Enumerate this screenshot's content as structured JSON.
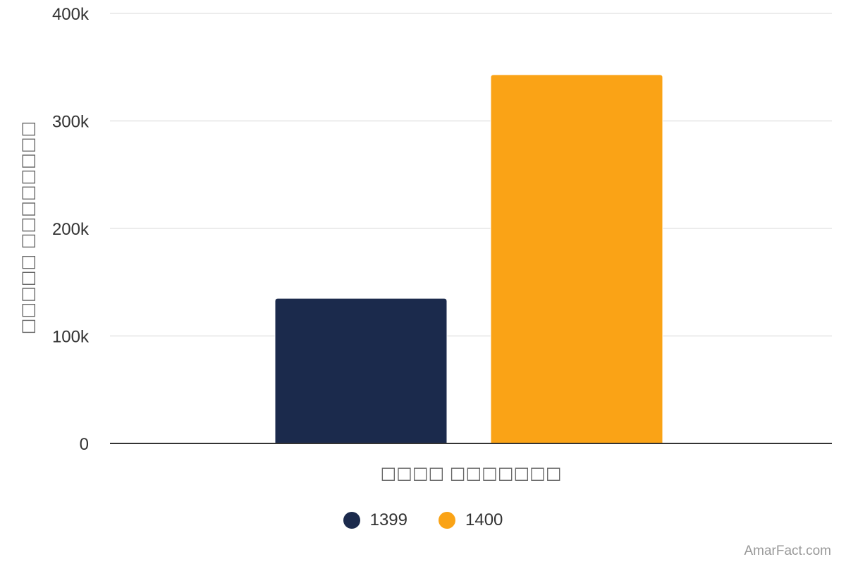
{
  "chart_data": {
    "type": "bar",
    "title": "",
    "xlabel": "□□□□ □□□□□□□",
    "ylabel": "□□□□□ □□□□□□□□",
    "categories": [
      ""
    ],
    "series": [
      {
        "name": "1399",
        "values": [
          135000
        ],
        "color": "#1b2a4c"
      },
      {
        "name": "1400",
        "values": [
          343000
        ],
        "color": "#faa316"
      }
    ],
    "ylim": [
      0,
      400000
    ],
    "yticks": [
      0,
      100000,
      200000,
      300000,
      400000
    ],
    "ytick_labels": [
      "0",
      "100k",
      "200k",
      "300k",
      "400k"
    ],
    "grid": true,
    "legend_position": "bottom-center"
  },
  "credit": "AmarFact.com"
}
